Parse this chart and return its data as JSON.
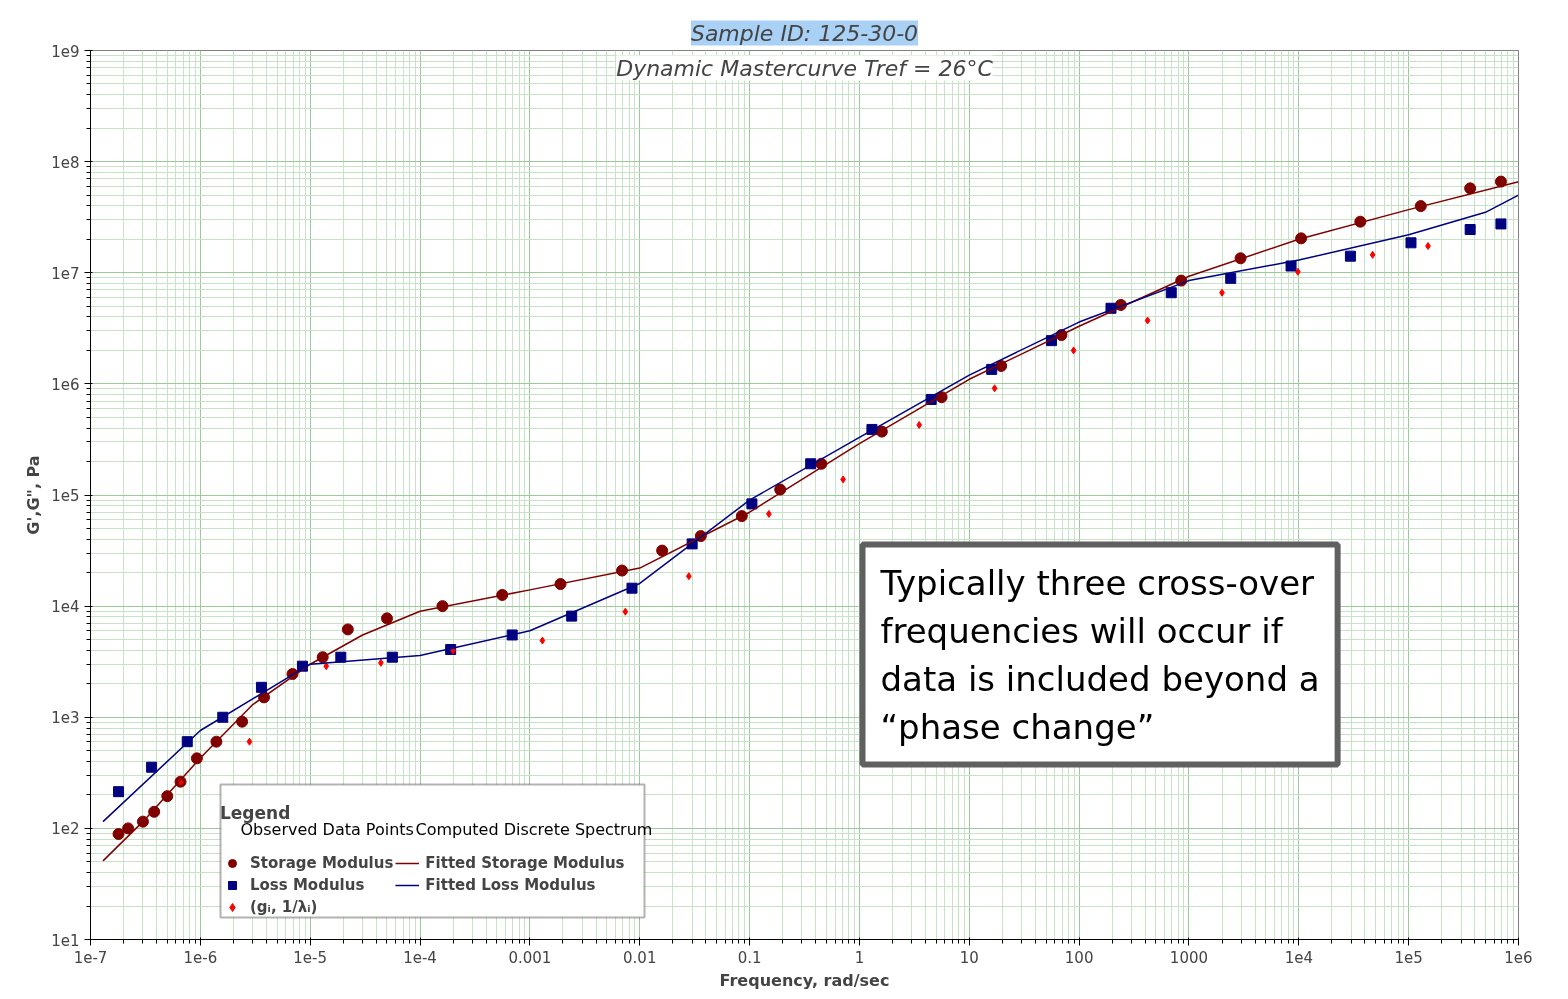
{
  "chart_data": {
    "type": "scatter",
    "title": "Sample ID: 125-30-0",
    "subtitle": "Dynamic Mastercurve Tref = 26°C",
    "xlabel": "Frequency, rad/sec",
    "ylabel": "G',G\", Pa",
    "legend_title": "Legend",
    "log": "xy",
    "grid": true,
    "legend": "bottom left",
    "xlim": [
      1e-07,
      1000000.0
    ],
    "ylim": [
      10,
      1000000000.0
    ],
    "xticks": [
      {
        "value": 1e-07,
        "label": "1e-7"
      },
      {
        "value": 1e-06,
        "label": "1e-6"
      },
      {
        "value": 1e-05,
        "label": "1e-5"
      },
      {
        "value": 0.0001,
        "label": "1e-4"
      },
      0.001,
      0.01,
      0.1,
      1,
      10,
      100,
      1000,
      {
        "value": 10000.0,
        "label": "1e4"
      },
      {
        "value": 100000.0,
        "label": "1e5"
      },
      {
        "value": 1000000.0,
        "label": "1e6"
      }
    ],
    "yticks": [
      {
        "value": 10,
        "label": "1e1"
      },
      {
        "value": 100,
        "label": "1e2"
      },
      {
        "value": 1000,
        "label": "1e3"
      },
      {
        "value": 10000.0,
        "label": "1e4"
      },
      {
        "value": 100000.0,
        "label": "1e5"
      },
      {
        "value": 1000000.0,
        "label": "1e6"
      },
      {
        "value": 10000000.0,
        "label": "1e7"
      },
      {
        "value": 100000000.0,
        "label": "1e8"
      },
      {
        "value": 1000000000.0,
        "label": "1e9"
      }
    ],
    "series": [
      {
        "name": "Storage Modulus",
        "marker": "circle",
        "color": "#800000",
        "x": [
          1.8e-07,
          2.2e-07,
          3e-07,
          3.8e-07,
          5e-07,
          6.6e-07,
          9.3e-07,
          1.4e-06,
          2.4e-06,
          3.8e-06,
          6.9e-06,
          1.3e-05,
          2.2e-05,
          5e-05,
          0.00016,
          0.00056,
          0.0019,
          0.0069,
          0.016,
          0.036,
          0.085,
          0.19,
          0.45,
          1.6,
          5.6,
          19.5,
          69,
          240,
          850,
          2950,
          10500,
          36300,
          129000,
          363000,
          692000
        ],
        "values": [
          89,
          100,
          115,
          141,
          195,
          263,
          427,
          603,
          912,
          1510,
          2450,
          3470,
          6170,
          7760,
          10000,
          12600,
          15800,
          20900,
          31600,
          42700,
          64600,
          112000,
          191000,
          372000,
          759000,
          1450000,
          2750000,
          5130000,
          8500000,
          13500000,
          20400000,
          28800000,
          39800000,
          57500000,
          66100000
        ]
      },
      {
        "name": "Loss Modulus",
        "marker": "square",
        "color": "#000080",
        "x": [
          1.8e-07,
          3.6e-07,
          7.6e-07,
          1.6e-06,
          3.6e-06,
          8.5e-06,
          1.9e-05,
          5.6e-05,
          0.00019,
          0.00069,
          0.0024,
          0.0085,
          0.03,
          0.105,
          0.36,
          1.3,
          4.5,
          16,
          56,
          195,
          690,
          2400,
          8500,
          29500,
          105000,
          363000,
          692000
        ],
        "values": [
          214,
          355,
          603,
          1000,
          1860,
          2880,
          3470,
          3470,
          4070,
          5500,
          8130,
          14500,
          36300,
          83200,
          191000,
          389000,
          724000,
          1350000,
          2450000,
          4790000,
          6610000,
          8910000,
          11500000,
          14100000,
          18600000,
          24500000,
          27500000
        ]
      },
      {
        "name": "(gᵢ, 1/λᵢ)",
        "marker": "diamond",
        "color": "#ff0000",
        "x": [
          6.6e-07,
          2.8e-06,
          1.4e-05,
          4.4e-05,
          0.0002,
          0.0013,
          0.0074,
          0.028,
          0.15,
          0.71,
          3.5,
          17,
          89,
          420,
          2000,
          9800,
          47000,
          150000
        ],
        "values": [
          263,
          603,
          2880,
          3090,
          3980,
          4900,
          8910,
          18600,
          67600,
          138000,
          427000,
          912000,
          2000000,
          3720000,
          6610000,
          10200000,
          14500000,
          17400000
        ]
      },
      {
        "name": "Fitted Storage Modulus",
        "type": "line",
        "marker": "none",
        "color": "#800000",
        "x": [
          1.3e-07,
          3e-07,
          1e-06,
          3e-06,
          1e-05,
          3e-05,
          0.0001,
          0.001,
          0.01,
          0.1,
          1,
          10,
          100,
          1000,
          10000.0,
          100000.0,
          1000000.0
        ],
        "values": [
          51,
          115,
          430,
          1300,
          3000,
          5500,
          9000,
          14000,
          22000,
          70000,
          290000,
          1100000,
          3300000,
          9300000,
          20000000,
          37000000,
          66000000
        ]
      },
      {
        "name": "Fitted Loss Modulus",
        "type": "line",
        "marker": "none",
        "color": "#000080",
        "x": [
          1.3e-07,
          1e-06,
          1e-05,
          0.0001,
          0.001,
          0.01,
          0.1,
          1,
          10,
          100,
          1000,
          10000.0,
          100000.0,
          500000.0,
          1000000.0
        ],
        "values": [
          115,
          760,
          3000,
          3600,
          6000,
          16000,
          90000,
          330000,
          1200000,
          3600000,
          8500000,
          13000000,
          22000000,
          35000000,
          50000000
        ]
      }
    ],
    "annotations": [
      "Typically three cross-over frequencies will occur if data is included beyond a “phase change”",
      "Observed Data Points",
      "Computed Discrete Spectrum"
    ]
  }
}
